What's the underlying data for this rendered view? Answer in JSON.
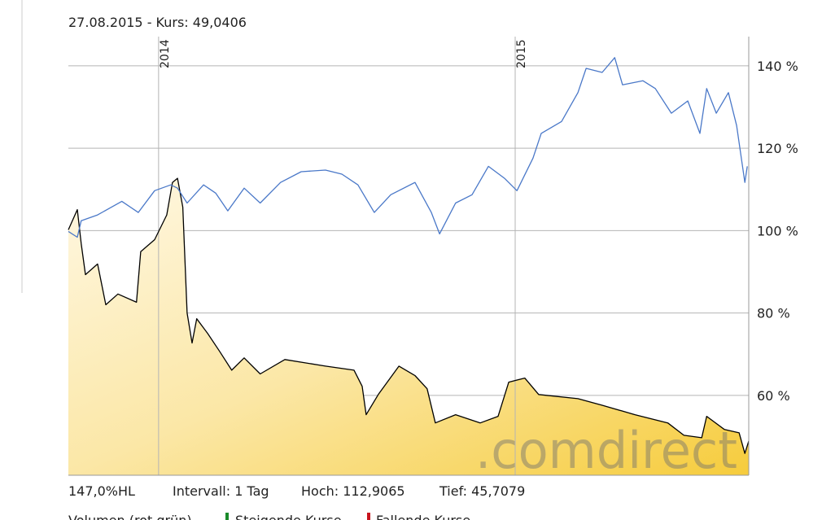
{
  "chart_data": {
    "type": "line",
    "title": "27.08.2015  - Kurs: 49,0406",
    "footer": [
      "147,0%HL",
      "Intervall: 1 Tag",
      "Hoch: 112,9065",
      "Tief: 45,7079"
    ],
    "legend_note": [
      "Volumen (rot grün)",
      "Steigende Kurse",
      "Fallende Kurse"
    ],
    "watermark": ".comdirect",
    "xlim": [
      2013.747,
      2015.655
    ],
    "xticks": [
      2014,
      2015
    ],
    "ylim": [
      40.6,
      147.1
    ],
    "yticks": [
      {
        "value": 60,
        "label": "60 %"
      },
      {
        "value": 80,
        "label": "80 %"
      },
      {
        "value": 100,
        "label": "100 %"
      },
      {
        "value": 120,
        "label": "120 %"
      },
      {
        "value": 140,
        "label": "140 %"
      }
    ],
    "grid": true,
    "series": [
      {
        "color": "#000000",
        "area": true,
        "x": [
          2013.747,
          2013.772,
          2013.783,
          2013.795,
          2013.829,
          2013.852,
          2013.886,
          2013.938,
          2013.95,
          2013.989,
          2014.023,
          2014.039,
          2014.053,
          2014.068,
          2014.08,
          2014.094,
          2014.107,
          2014.137,
          2014.171,
          2014.205,
          2014.24,
          2014.285,
          2014.354,
          2014.468,
          2014.548,
          2014.571,
          2014.582,
          2014.616,
          2014.674,
          2014.719,
          2014.753,
          2014.776,
          2014.833,
          2014.902,
          2014.952,
          2014.982,
          2015.027,
          2015.066,
          2015.176,
          2015.244,
          2015.336,
          2015.428,
          2015.473,
          2015.523,
          2015.537,
          2015.587,
          2015.628,
          2015.644,
          2015.655
        ],
        "values": [
          100.2,
          105.1,
          96.8,
          89.3,
          91.9,
          82.0,
          84.6,
          82.6,
          94.9,
          97.8,
          103.8,
          111.7,
          112.7,
          105.7,
          80.0,
          72.7,
          78.6,
          75.1,
          70.7,
          66.1,
          69.1,
          65.2,
          68.7,
          67.1,
          66.1,
          62.2,
          55.3,
          60.2,
          67.1,
          64.8,
          61.6,
          53.3,
          55.3,
          53.3,
          54.9,
          63.2,
          64.2,
          60.2,
          59.2,
          57.6,
          55.3,
          53.3,
          50.3,
          49.7,
          54.9,
          51.7,
          50.9,
          45.9,
          48.9
        ]
      },
      {
        "color": "#4a78c8",
        "area": false,
        "x": [
          2013.747,
          2013.772,
          2013.783,
          2013.829,
          2013.897,
          2013.943,
          2013.989,
          2014.034,
          2014.053,
          2014.08,
          2014.126,
          2014.16,
          2014.194,
          2014.24,
          2014.285,
          2014.342,
          2014.4,
          2014.468,
          2014.514,
          2014.559,
          2014.605,
          2014.651,
          2014.719,
          2014.765,
          2014.788,
          2014.833,
          2014.879,
          2014.925,
          2014.97,
          2015.005,
          2015.05,
          2015.073,
          2015.13,
          2015.176,
          2015.199,
          2015.244,
          2015.279,
          2015.301,
          2015.358,
          2015.393,
          2015.438,
          2015.484,
          2015.518,
          2015.537,
          2015.564,
          2015.598,
          2015.621,
          2015.644,
          2015.651
        ],
        "values": [
          99.8,
          98.4,
          102.4,
          103.8,
          107.1,
          104.4,
          109.7,
          111.1,
          110.3,
          106.7,
          111.1,
          109.1,
          104.8,
          110.3,
          106.7,
          111.7,
          114.3,
          114.7,
          113.7,
          111.1,
          104.4,
          108.7,
          111.7,
          104.4,
          99.2,
          106.7,
          108.7,
          115.6,
          112.7,
          109.7,
          117.6,
          123.6,
          126.5,
          133.5,
          139.4,
          138.4,
          142.0,
          135.4,
          136.4,
          134.5,
          128.5,
          131.5,
          123.6,
          134.5,
          128.5,
          133.5,
          125.5,
          111.7,
          115.6
        ]
      }
    ]
  }
}
